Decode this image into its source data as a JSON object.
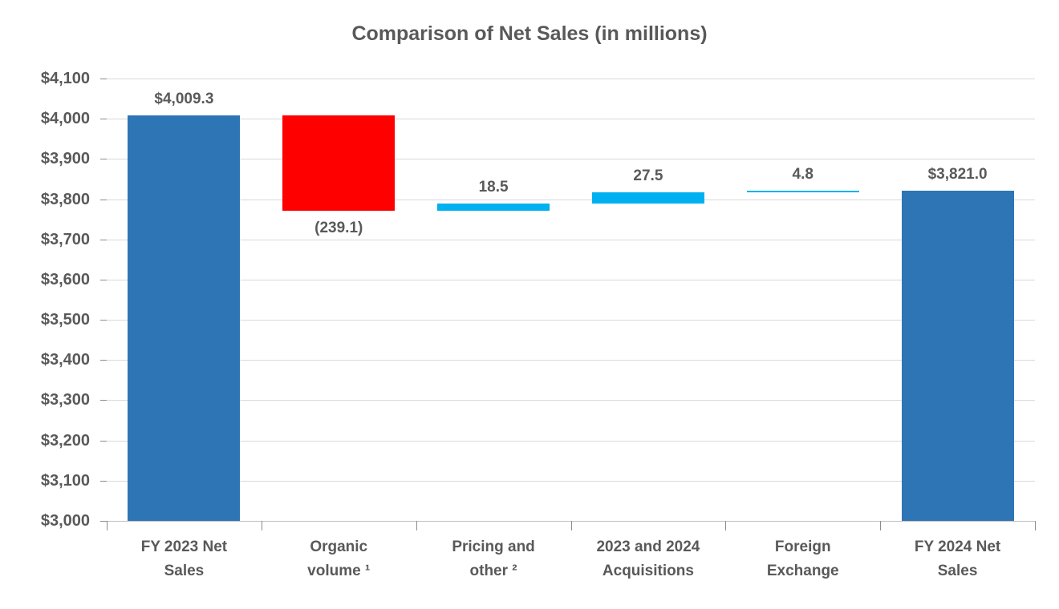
{
  "chart_data": {
    "type": "bar",
    "subtype": "waterfall",
    "title": "Comparison of Net Sales (in millions)",
    "xlabel": "",
    "ylabel": "",
    "ylim": [
      3000,
      4100
    ],
    "y_tick_step": 100,
    "grid": "horizontal",
    "legend": "none",
    "y_ticks": [
      {
        "value": 4100,
        "label": "$4,100"
      },
      {
        "value": 4000,
        "label": "$4,000"
      },
      {
        "value": 3900,
        "label": "$3,900"
      },
      {
        "value": 3800,
        "label": "$3,800"
      },
      {
        "value": 3700,
        "label": "$3,700"
      },
      {
        "value": 3600,
        "label": "$3,600"
      },
      {
        "value": 3500,
        "label": "$3,500"
      },
      {
        "value": 3400,
        "label": "$3,400"
      },
      {
        "value": 3300,
        "label": "$3,300"
      },
      {
        "value": 3200,
        "label": "$3,200"
      },
      {
        "value": 3100,
        "label": "$3,100"
      },
      {
        "value": 3000,
        "label": "$3,000"
      }
    ],
    "bars": [
      {
        "category": "FY 2023 Net Sales",
        "category_lines": [
          "FY 2023 Net",
          "Sales"
        ],
        "role": "total",
        "value": 4009.3,
        "bar_start": 3000,
        "bar_end": 4009.3,
        "color": "#2E75B6",
        "data_label": "$4,009.3",
        "label_position": "above"
      },
      {
        "category": "Organic volume ¹",
        "category_lines": [
          "Organic",
          "volume ¹"
        ],
        "role": "decrease",
        "value": -239.1,
        "bar_start": 4009.3,
        "bar_end": 3770.2,
        "color": "#FF0000",
        "data_label": "(239.1)",
        "label_position": "below"
      },
      {
        "category": "Pricing and other ²",
        "category_lines": [
          "Pricing and",
          "other ²"
        ],
        "role": "increase",
        "value": 18.5,
        "bar_start": 3770.2,
        "bar_end": 3788.7,
        "color": "#00B0F0",
        "data_label": "18.5",
        "label_position": "above"
      },
      {
        "category": "2023 and 2024 Acquisitions",
        "category_lines": [
          "2023 and 2024",
          "Acquisitions"
        ],
        "role": "increase",
        "value": 27.5,
        "bar_start": 3788.7,
        "bar_end": 3816.2,
        "color": "#00B0F0",
        "data_label": "27.5",
        "label_position": "above"
      },
      {
        "category": "Foreign Exchange",
        "category_lines": [
          "Foreign",
          "Exchange"
        ],
        "role": "increase",
        "value": 4.8,
        "bar_start": 3816.2,
        "bar_end": 3821.0,
        "color": "#00B0F0",
        "data_label": "4.8",
        "label_position": "above"
      },
      {
        "category": "FY 2024 Net Sales",
        "category_lines": [
          "FY 2024 Net",
          "Sales"
        ],
        "role": "total",
        "value": 3821.0,
        "bar_start": 3000,
        "bar_end": 3821.0,
        "color": "#2E75B6",
        "data_label": "$3,821.0",
        "label_position": "above"
      }
    ],
    "colors": {
      "total": "#2E75B6",
      "decrease": "#FF0000",
      "increase": "#00B0F0",
      "text": "#595959",
      "gridline": "#D9D9D9",
      "axis_line": "#BFBFBF",
      "tick": "#8C8C8C"
    }
  }
}
